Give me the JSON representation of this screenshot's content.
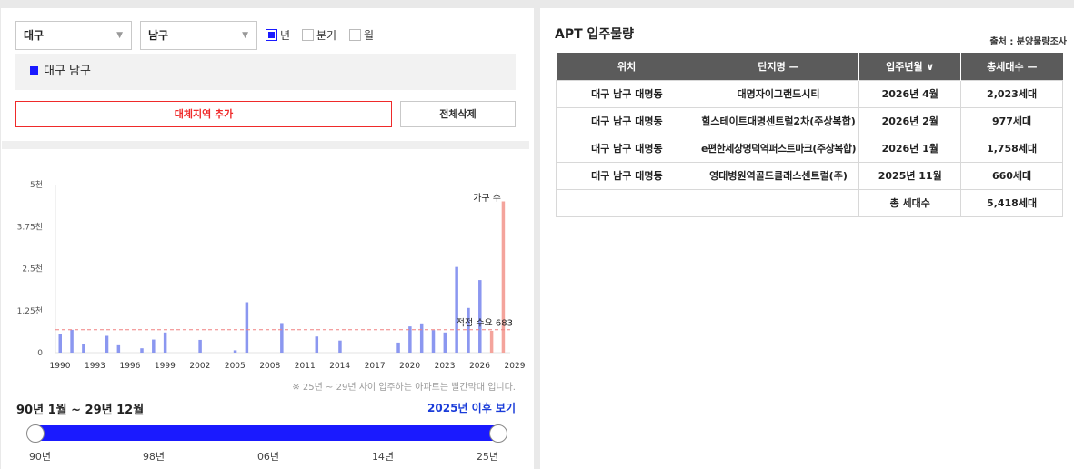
{
  "filters": {
    "city": "대구",
    "district": "남구",
    "period_options": [
      {
        "label": "년",
        "checked": true
      },
      {
        "label": "분기",
        "checked": false
      },
      {
        "label": "월",
        "checked": false
      }
    ]
  },
  "region_tag": "대구 남구",
  "buttons": {
    "add": "대체지역 추가",
    "delete_all": "전체삭제"
  },
  "chart_data": {
    "type": "bar",
    "series_label": "가구 수",
    "y_ticks": [
      "0",
      "1.25천",
      "2.5천",
      "3.75천",
      "5천"
    ],
    "ylim": [
      0,
      5000
    ],
    "xlim": [
      1990,
      2029
    ],
    "x_ticks": [
      "1990",
      "1993",
      "1996",
      "1999",
      "2002",
      "2005",
      "2008",
      "2011",
      "2014",
      "2017",
      "2020",
      "2023",
      "2026",
      "2029"
    ],
    "bars": [
      {
        "x": 1990,
        "value": 560
      },
      {
        "x": 1991,
        "value": 680
      },
      {
        "x": 1992,
        "value": 260
      },
      {
        "x": 1994,
        "value": 500
      },
      {
        "x": 1995,
        "value": 220
      },
      {
        "x": 1997,
        "value": 130
      },
      {
        "x": 1998,
        "value": 390
      },
      {
        "x": 1999,
        "value": 600
      },
      {
        "x": 2002,
        "value": 380
      },
      {
        "x": 2005,
        "value": 70
      },
      {
        "x": 2006,
        "value": 1500
      },
      {
        "x": 2009,
        "value": 880
      },
      {
        "x": 2012,
        "value": 480
      },
      {
        "x": 2014,
        "value": 360
      },
      {
        "x": 2019,
        "value": 300
      },
      {
        "x": 2020,
        "value": 780
      },
      {
        "x": 2021,
        "value": 870
      },
      {
        "x": 2022,
        "value": 670
      },
      {
        "x": 2023,
        "value": 600
      },
      {
        "x": 2024,
        "value": 2550
      },
      {
        "x": 2025,
        "value": 1330
      },
      {
        "x": 2026,
        "value": 2160
      },
      {
        "x": 2027,
        "value": 650,
        "future": true
      },
      {
        "x": 2028,
        "value": 4500,
        "future": true
      }
    ],
    "reference_line": {
      "value": 683,
      "label": "적정 수요 683"
    },
    "colors": {
      "past": "#8b97f0",
      "future": "#f4a49c",
      "reference": "#f08080"
    }
  },
  "note": "※ 25년 ~ 29년 사이 입주하는 아파트는 빨간막대 입니다.",
  "period_range": "90년 1월 ~ 29년 12월",
  "after_link": "2025년 이후 보기",
  "slider": {
    "labels": [
      "90년",
      "98년",
      "06년",
      "14년",
      "25년"
    ],
    "start": 0,
    "end": 1
  },
  "supply": {
    "title": "APT 입주물량",
    "source": "출처 : 분양물량조사",
    "columns": [
      "위치",
      "단지명 —",
      "입주년월 ∨",
      "총세대수 —"
    ],
    "rows": [
      [
        "대구 남구 대명동",
        "대명자이그랜드시티",
        "2026년 4월",
        "2,023세대"
      ],
      [
        "대구 남구 대명동",
        "힐스테이트대명센트럴2차(주상복합)",
        "2026년 2월",
        "977세대"
      ],
      [
        "대구 남구 대명동",
        "e편한세상명덕역퍼스트마크(주상복합)",
        "2026년 1월",
        "1,758세대"
      ],
      [
        "대구 남구 대명동",
        "영대병원역골드클래스센트럴(주)",
        "2025년 11월",
        "660세대"
      ]
    ],
    "total_label": "총 세대수",
    "total_value": "5,418세대"
  }
}
